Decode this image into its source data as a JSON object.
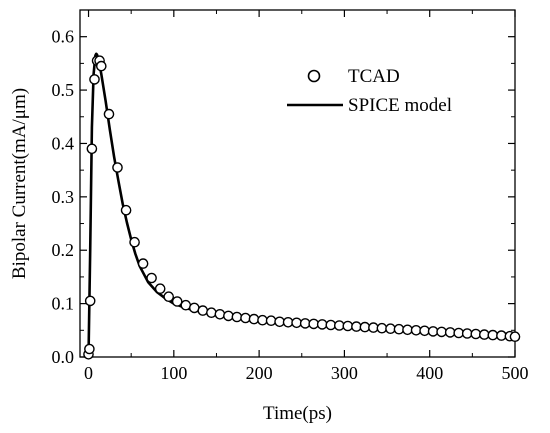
{
  "chart_data": {
    "type": "scatter",
    "title": "",
    "xlabel": "Time(ps)",
    "ylabel": "Bipolar Current(mA/μm)",
    "xlim": [
      -10,
      500
    ],
    "ylim": [
      0.0,
      0.65
    ],
    "x_ticks": [
      0,
      100,
      200,
      300,
      400,
      500
    ],
    "x_tick_labels": [
      "0",
      "100",
      "200",
      "300",
      "400",
      "500"
    ],
    "y_ticks": [
      0.0,
      0.1,
      0.2,
      0.3,
      0.4,
      0.5,
      0.6
    ],
    "y_tick_labels": [
      "0.0",
      "0.1",
      "0.2",
      "0.3",
      "0.4",
      "0.5",
      "0.6"
    ],
    "grid": false,
    "legend_position": "top-right",
    "series": [
      {
        "name": "TCAD",
        "style": "open-circle-markers",
        "color": "#000000",
        "x": [
          0,
          1,
          2,
          4,
          7,
          10,
          13,
          15,
          24,
          34,
          44,
          54,
          64,
          74,
          84,
          94,
          104,
          114,
          124,
          134,
          144,
          154,
          164,
          174,
          184,
          194,
          204,
          214,
          224,
          234,
          244,
          254,
          264,
          274,
          284,
          294,
          304,
          314,
          324,
          334,
          344,
          354,
          364,
          374,
          384,
          394,
          404,
          414,
          424,
          434,
          444,
          454,
          464,
          474,
          484,
          494,
          500
        ],
        "y": [
          0.005,
          0.015,
          0.105,
          0.39,
          0.52,
          0.555,
          0.555,
          0.545,
          0.455,
          0.355,
          0.275,
          0.215,
          0.175,
          0.148,
          0.128,
          0.113,
          0.104,
          0.097,
          0.092,
          0.087,
          0.083,
          0.08,
          0.077,
          0.075,
          0.073,
          0.071,
          0.069,
          0.068,
          0.066,
          0.065,
          0.064,
          0.063,
          0.062,
          0.061,
          0.06,
          0.059,
          0.058,
          0.057,
          0.056,
          0.055,
          0.054,
          0.053,
          0.052,
          0.051,
          0.05,
          0.049,
          0.048,
          0.047,
          0.046,
          0.045,
          0.044,
          0.043,
          0.042,
          0.041,
          0.04,
          0.039,
          0.038
        ]
      },
      {
        "name": "SPICE model",
        "style": "solid-line",
        "color": "#000000",
        "x": [
          0,
          2,
          4,
          6,
          8,
          9,
          10,
          12,
          15,
          20,
          25,
          30,
          35,
          40,
          45,
          50,
          55,
          60,
          70,
          80,
          90,
          100,
          110,
          120,
          140,
          160,
          180,
          200,
          250,
          300,
          350,
          400,
          450,
          500
        ],
        "y": [
          0.0,
          0.2,
          0.43,
          0.53,
          0.565,
          0.568,
          0.566,
          0.555,
          0.53,
          0.48,
          0.425,
          0.375,
          0.33,
          0.288,
          0.252,
          0.22,
          0.193,
          0.17,
          0.14,
          0.122,
          0.11,
          0.1,
          0.094,
          0.089,
          0.082,
          0.077,
          0.073,
          0.07,
          0.064,
          0.058,
          0.054,
          0.05,
          0.046,
          0.043
        ]
      }
    ]
  }
}
